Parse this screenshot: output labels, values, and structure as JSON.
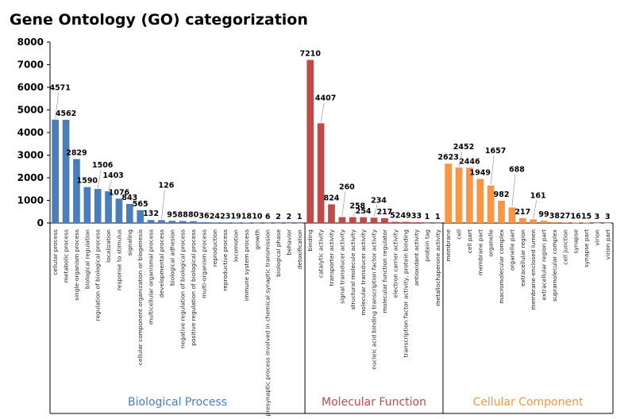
{
  "chart_data": {
    "type": "bar",
    "title": "Gene Ontology (GO) categorization",
    "xlabel": "",
    "ylabel": "",
    "ylim": [
      0,
      8000
    ],
    "yticks": [
      0,
      1000,
      2000,
      3000,
      4000,
      5000,
      6000,
      7000,
      8000
    ],
    "grid": false,
    "legend": "none",
    "series": [
      {
        "name": "Biological Process",
        "color": "#4a7ebb",
        "categories": [
          "cellular process",
          "metabolic process",
          "single-organism process",
          "biological regulation",
          "regulation of biological process",
          "localization",
          "response to stimulus",
          "signaling",
          "cellular component organization or biogenesis",
          "multicellular organismal process",
          "developmental process",
          "biological adhesion",
          "negative regulation of biological process",
          "positive regulation of biological process",
          "multi-organism process",
          "reproduction",
          "reproductive process",
          "locomotion",
          "immune system process",
          "growth",
          "presynaptic process involved in chemical synaptic transmission",
          "biological phase",
          "behavior",
          "detoxification"
        ],
        "values": [
          4571,
          4562,
          2829,
          1590,
          1506,
          1403,
          1076,
          843,
          565,
          132,
          126,
          95,
          88,
          80,
          36,
          24,
          23,
          19,
          18,
          10,
          6,
          2,
          2,
          1
        ]
      },
      {
        "name": "Molecular Function",
        "color": "#be4b48",
        "categories": [
          "binding",
          "catalytic activity",
          "transporter activity",
          "signal transducer activity",
          "structural molecule activity",
          "molecular transducer activity",
          "nucleic acid binding transcription factor activity",
          "molecular function regulator",
          "electron carrier activity",
          "transcription factor activity, protein binding",
          "antioxidant activity",
          "protein tag",
          "metallochaperone activity"
        ],
        "values": [
          7210,
          4407,
          824,
          260,
          258,
          254,
          234,
          217,
          52,
          49,
          33,
          1,
          1
        ]
      },
      {
        "name": "Cellular Component",
        "color": "#f79646",
        "categories": [
          "membrane",
          "cell",
          "cell part",
          "membrane part",
          "organelle",
          "macromolecular complex",
          "organelle part",
          "extracellular region",
          "membrane-enclosed lumen",
          "extracellular region part",
          "supramolecular complex",
          "cell junction",
          "synapse",
          "synapse part",
          "virion",
          "virion part"
        ],
        "values": [
          2623,
          2452,
          2446,
          1949,
          1657,
          982,
          688,
          217,
          161,
          99,
          38,
          27,
          16,
          15,
          3,
          3
        ]
      }
    ]
  }
}
